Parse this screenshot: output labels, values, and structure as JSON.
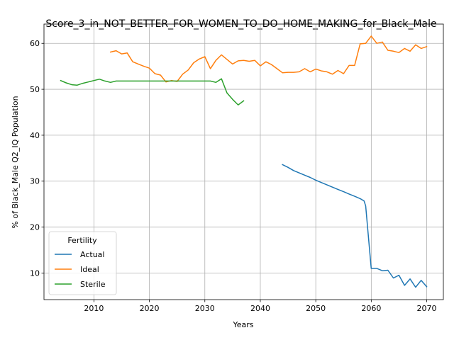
{
  "chart_data": {
    "type": "line",
    "title": "Score_3_in_NOT_BETTER_FOR_WOMEN_TO_DO_HOME_MAKING_for_Black_Male",
    "xlabel": "Years",
    "ylabel": "% of Black_Male Q2_IQ Population",
    "xlim": [
      2001,
      2073
    ],
    "ylim": [
      4.2,
      64.2
    ],
    "xticks": [
      2010,
      2020,
      2030,
      2040,
      2050,
      2060,
      2070
    ],
    "yticks": [
      10,
      20,
      30,
      40,
      50,
      60
    ],
    "grid": true,
    "legend": {
      "title": "Fertility",
      "placement": "lower-left"
    },
    "series": [
      {
        "name": "Actual",
        "color": "#1f77b4",
        "points": [
          [
            2044,
            33.6
          ],
          [
            2045,
            33.0
          ],
          [
            2046,
            32.3
          ],
          [
            2047,
            31.8
          ],
          [
            2048,
            31.3
          ],
          [
            2049,
            30.8
          ],
          [
            2050,
            30.2
          ],
          [
            2051,
            29.7
          ],
          [
            2052,
            29.2
          ],
          [
            2053,
            28.7
          ],
          [
            2054,
            28.2
          ],
          [
            2055,
            27.7
          ],
          [
            2056,
            27.2
          ],
          [
            2057,
            26.7
          ],
          [
            2058,
            26.2
          ],
          [
            2058.7,
            25.7
          ],
          [
            2059,
            24.6
          ],
          [
            2060,
            11.0
          ],
          [
            2061,
            11.0
          ],
          [
            2062,
            10.5
          ],
          [
            2063,
            10.6
          ],
          [
            2064,
            8.9
          ],
          [
            2065,
            9.5
          ],
          [
            2066,
            7.3
          ],
          [
            2067,
            8.7
          ],
          [
            2068,
            6.9
          ],
          [
            2069,
            8.4
          ],
          [
            2070,
            7.0
          ]
        ]
      },
      {
        "name": "Ideal",
        "color": "#ff7f0e",
        "points": [
          [
            2013,
            58.1
          ],
          [
            2014,
            58.4
          ],
          [
            2015,
            57.7
          ],
          [
            2016,
            57.9
          ],
          [
            2017,
            56.0
          ],
          [
            2018,
            55.5
          ],
          [
            2019,
            55.0
          ],
          [
            2020,
            54.6
          ],
          [
            2021,
            53.4
          ],
          [
            2022,
            53.1
          ],
          [
            2023,
            51.6
          ],
          [
            2024,
            51.9
          ],
          [
            2025,
            51.7
          ],
          [
            2026,
            53.3
          ],
          [
            2027,
            54.2
          ],
          [
            2028,
            55.8
          ],
          [
            2029,
            56.6
          ],
          [
            2030,
            57.1
          ],
          [
            2031,
            54.5
          ],
          [
            2032,
            56.3
          ],
          [
            2033,
            57.5
          ],
          [
            2034,
            56.5
          ],
          [
            2035,
            55.5
          ],
          [
            2036,
            56.2
          ],
          [
            2037,
            56.3
          ],
          [
            2038,
            56.1
          ],
          [
            2039,
            56.3
          ],
          [
            2040,
            55.1
          ],
          [
            2041,
            56.0
          ],
          [
            2042,
            55.4
          ],
          [
            2043,
            54.5
          ],
          [
            2044,
            53.6
          ],
          [
            2045,
            53.7
          ],
          [
            2046,
            53.7
          ],
          [
            2047,
            53.8
          ],
          [
            2048,
            54.5
          ],
          [
            2049,
            53.8
          ],
          [
            2050,
            54.4
          ],
          [
            2051,
            54.0
          ],
          [
            2052,
            53.8
          ],
          [
            2053,
            53.3
          ],
          [
            2054,
            54.1
          ],
          [
            2055,
            53.4
          ],
          [
            2056,
            55.2
          ],
          [
            2057,
            55.2
          ],
          [
            2058,
            59.9
          ],
          [
            2059,
            60.0
          ],
          [
            2060,
            61.6
          ],
          [
            2061,
            60.0
          ],
          [
            2062,
            60.3
          ],
          [
            2063,
            58.5
          ],
          [
            2064,
            58.3
          ],
          [
            2065,
            58.0
          ],
          [
            2066,
            58.9
          ],
          [
            2067,
            58.3
          ],
          [
            2068,
            59.7
          ],
          [
            2069,
            58.9
          ],
          [
            2070,
            59.3
          ]
        ]
      },
      {
        "name": "Sterile",
        "color": "#2ca02c",
        "points": [
          [
            2004,
            51.9
          ],
          [
            2005,
            51.4
          ],
          [
            2006,
            51.0
          ],
          [
            2007,
            50.9
          ],
          [
            2008,
            51.3
          ],
          [
            2009,
            51.6
          ],
          [
            2010,
            51.9
          ],
          [
            2011,
            52.2
          ],
          [
            2012,
            51.8
          ],
          [
            2013,
            51.5
          ],
          [
            2014,
            51.8
          ],
          [
            2015,
            51.8
          ],
          [
            2016,
            51.8
          ],
          [
            2017,
            51.8
          ],
          [
            2018,
            51.8
          ],
          [
            2019,
            51.8
          ],
          [
            2020,
            51.8
          ],
          [
            2021,
            51.8
          ],
          [
            2022,
            51.8
          ],
          [
            2023,
            51.8
          ],
          [
            2024,
            51.8
          ],
          [
            2025,
            51.8
          ],
          [
            2026,
            51.8
          ],
          [
            2027,
            51.8
          ],
          [
            2028,
            51.8
          ],
          [
            2029,
            51.8
          ],
          [
            2030,
            51.8
          ],
          [
            2031,
            51.8
          ],
          [
            2032,
            51.5
          ],
          [
            2033,
            52.3
          ],
          [
            2034,
            49.2
          ],
          [
            2035,
            47.8
          ],
          [
            2036,
            46.6
          ],
          [
            2037,
            47.5
          ]
        ]
      }
    ]
  }
}
